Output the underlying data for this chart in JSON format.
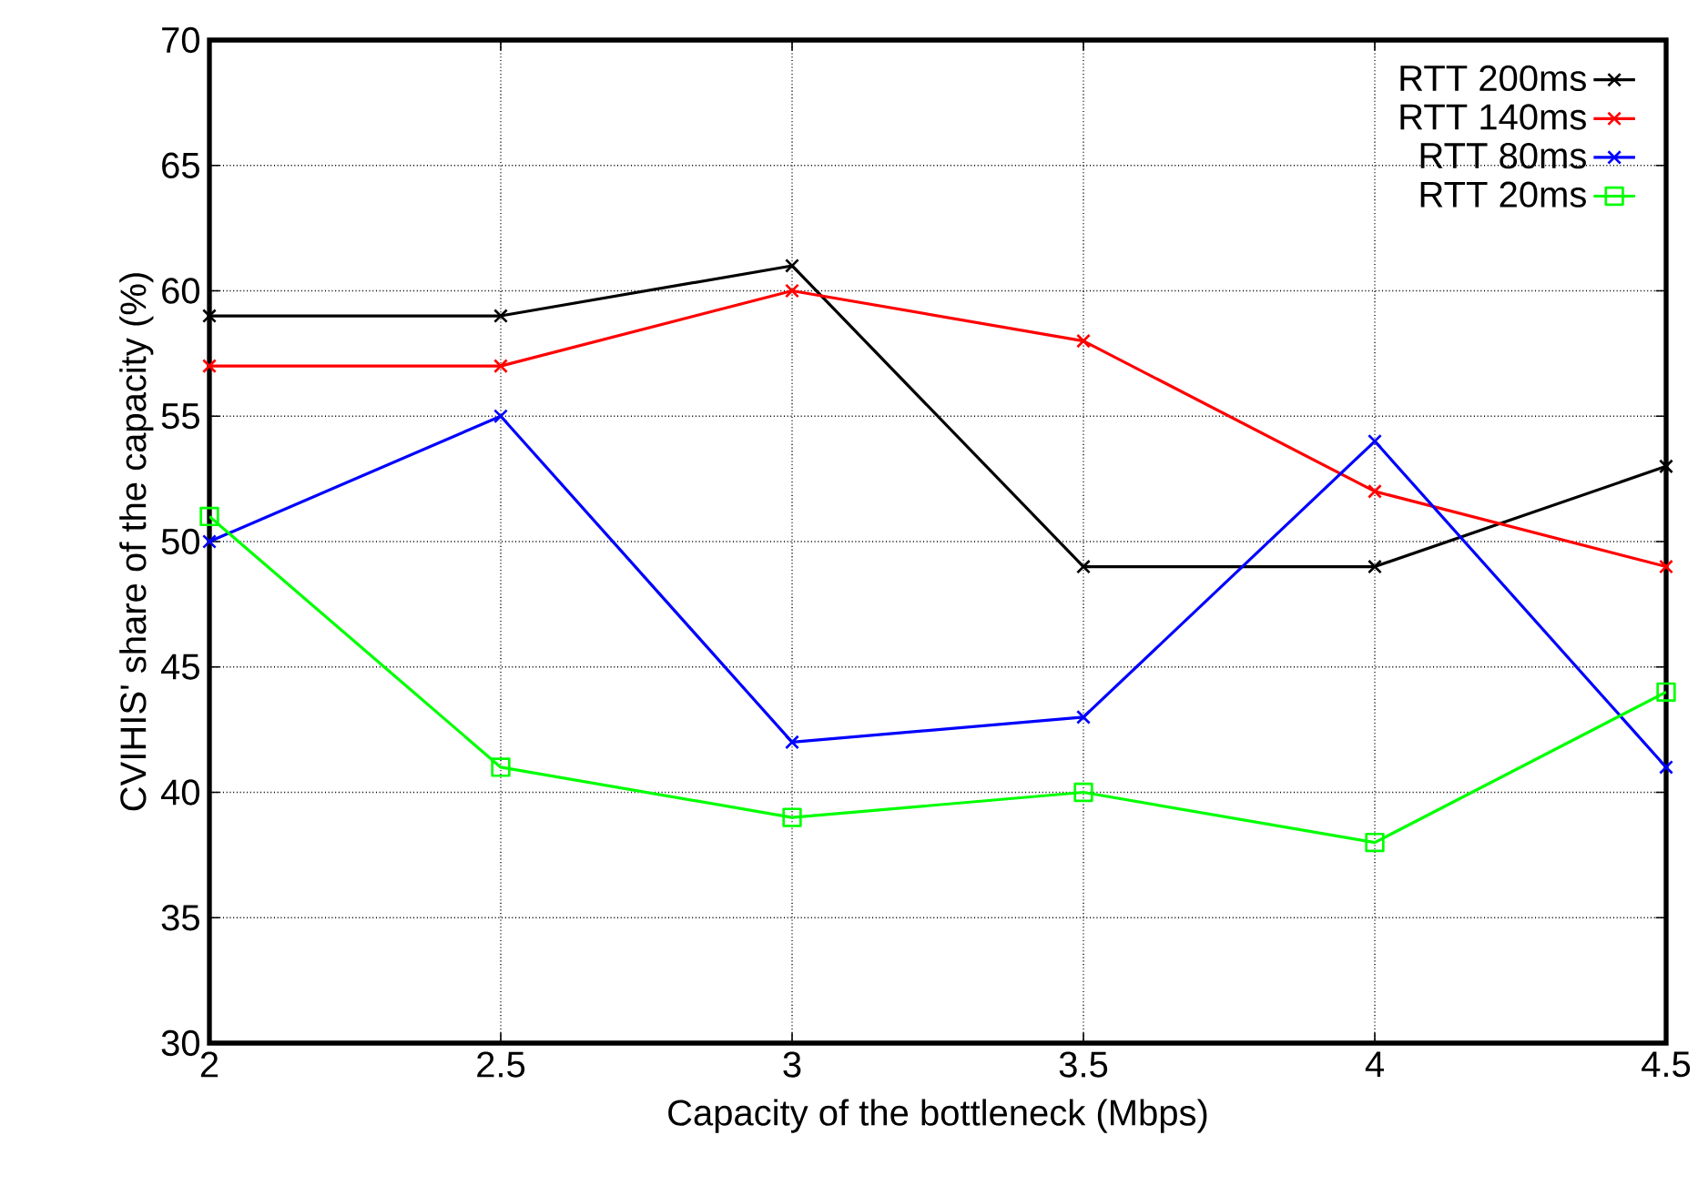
{
  "chart_data": {
    "type": "line",
    "xlabel": "Capacity of the bottleneck (Mbps)",
    "ylabel": "CVIHIS' share of the capacity (%)",
    "x": [
      2,
      2.5,
      3,
      3.5,
      4,
      4.5
    ],
    "series": [
      {
        "name": "RTT 200ms",
        "color": "#000000",
        "marker": "cross",
        "values": [
          59,
          59,
          61,
          49,
          49,
          53
        ]
      },
      {
        "name": "RTT 140ms",
        "color": "#ff0000",
        "marker": "cross",
        "values": [
          57,
          57,
          60,
          58,
          52,
          49
        ]
      },
      {
        "name": "RTT 80ms",
        "color": "#0000ff",
        "marker": "cross",
        "values": [
          50,
          55,
          42,
          43,
          54,
          41
        ]
      },
      {
        "name": "RTT 20ms",
        "color": "#00ff00",
        "marker": "square",
        "values": [
          51,
          41,
          39,
          40,
          38,
          44
        ]
      }
    ],
    "xlim": [
      2,
      4.5
    ],
    "xticks": [
      2,
      2.5,
      3,
      3.5,
      4,
      4.5
    ],
    "ylim": [
      30,
      70
    ],
    "yticks": [
      30,
      35,
      40,
      45,
      50,
      55,
      60,
      65,
      70
    ],
    "grid": true,
    "legend": "top right",
    "line_style": "solid"
  }
}
